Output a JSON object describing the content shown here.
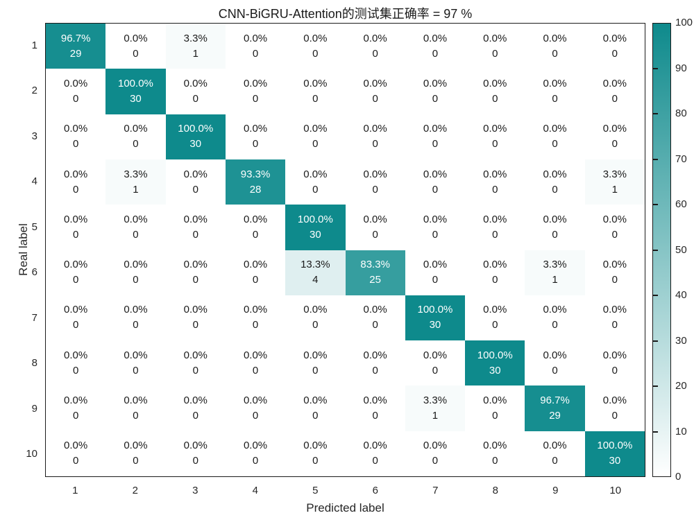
{
  "chart_data": {
    "type": "heatmap",
    "title": "CNN-BiGRU-Attention的测试集正确率 = 97 %",
    "xlabel": "Predicted label",
    "ylabel": "Real label",
    "x_categories": [
      "1",
      "2",
      "3",
      "4",
      "5",
      "6",
      "7",
      "8",
      "9",
      "10"
    ],
    "y_categories": [
      "1",
      "2",
      "3",
      "4",
      "5",
      "6",
      "7",
      "8",
      "9",
      "10"
    ],
    "percent_matrix": [
      [
        96.7,
        0.0,
        3.3,
        0.0,
        0.0,
        0.0,
        0.0,
        0.0,
        0.0,
        0.0
      ],
      [
        0.0,
        100.0,
        0.0,
        0.0,
        0.0,
        0.0,
        0.0,
        0.0,
        0.0,
        0.0
      ],
      [
        0.0,
        0.0,
        100.0,
        0.0,
        0.0,
        0.0,
        0.0,
        0.0,
        0.0,
        0.0
      ],
      [
        0.0,
        3.3,
        0.0,
        93.3,
        0.0,
        0.0,
        0.0,
        0.0,
        0.0,
        3.3
      ],
      [
        0.0,
        0.0,
        0.0,
        0.0,
        100.0,
        0.0,
        0.0,
        0.0,
        0.0,
        0.0
      ],
      [
        0.0,
        0.0,
        0.0,
        0.0,
        13.3,
        83.3,
        0.0,
        0.0,
        3.3,
        0.0
      ],
      [
        0.0,
        0.0,
        0.0,
        0.0,
        0.0,
        0.0,
        100.0,
        0.0,
        0.0,
        0.0
      ],
      [
        0.0,
        0.0,
        0.0,
        0.0,
        0.0,
        0.0,
        0.0,
        100.0,
        0.0,
        0.0
      ],
      [
        0.0,
        0.0,
        0.0,
        0.0,
        0.0,
        0.0,
        3.3,
        0.0,
        96.7,
        0.0
      ],
      [
        0.0,
        0.0,
        0.0,
        0.0,
        0.0,
        0.0,
        0.0,
        0.0,
        0.0,
        100.0
      ]
    ],
    "count_matrix": [
      [
        29,
        0,
        1,
        0,
        0,
        0,
        0,
        0,
        0,
        0
      ],
      [
        0,
        30,
        0,
        0,
        0,
        0,
        0,
        0,
        0,
        0
      ],
      [
        0,
        0,
        30,
        0,
        0,
        0,
        0,
        0,
        0,
        0
      ],
      [
        0,
        1,
        0,
        28,
        0,
        0,
        0,
        0,
        0,
        1
      ],
      [
        0,
        0,
        0,
        0,
        30,
        0,
        0,
        0,
        0,
        0
      ],
      [
        0,
        0,
        0,
        0,
        4,
        25,
        0,
        0,
        1,
        0
      ],
      [
        0,
        0,
        0,
        0,
        0,
        0,
        30,
        0,
        0,
        0
      ],
      [
        0,
        0,
        0,
        0,
        0,
        0,
        0,
        30,
        0,
        0
      ],
      [
        0,
        0,
        0,
        0,
        0,
        0,
        1,
        0,
        29,
        0
      ],
      [
        0,
        0,
        0,
        0,
        0,
        0,
        0,
        0,
        0,
        30
      ]
    ],
    "colorbar": {
      "min": 0,
      "max": 100,
      "ticks": [
        0,
        10,
        20,
        30,
        40,
        50,
        60,
        70,
        80,
        90,
        100
      ]
    },
    "colors": {
      "low": "#ffffff",
      "high": "#0e8a8c",
      "text_dark": "#1a1a1a",
      "text_light": "#ffffff"
    },
    "legend_position": "right-colorbar",
    "grid": false
  }
}
